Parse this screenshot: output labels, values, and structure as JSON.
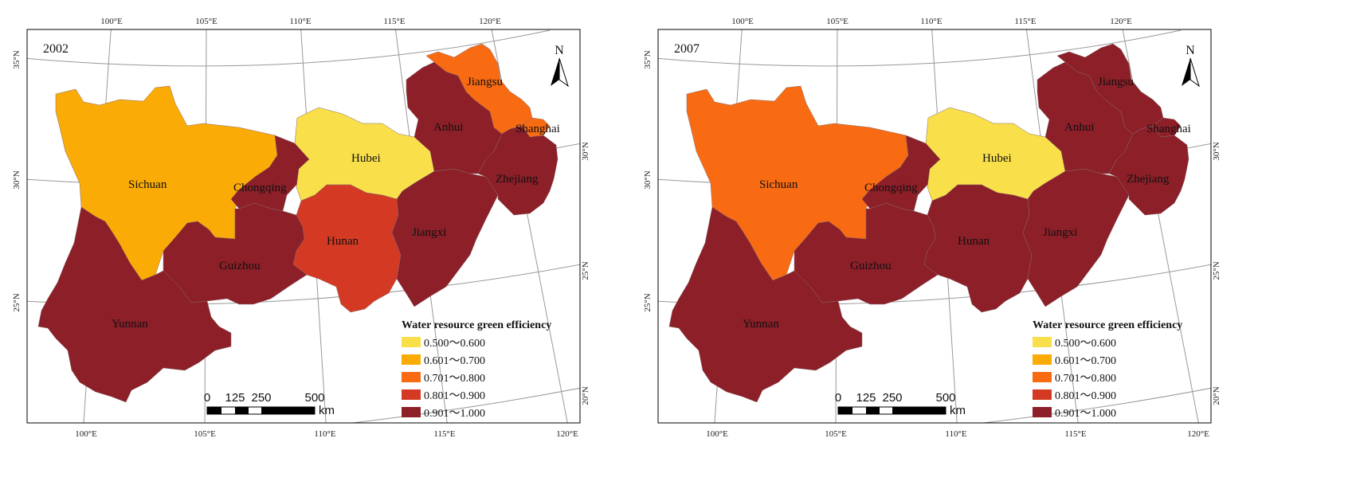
{
  "legend": {
    "title": "Water resource green efficiency",
    "classes": [
      {
        "label": "0.500～0.600",
        "color": "#f9e04b"
      },
      {
        "label": "0.601～0.700",
        "color": "#fbab05"
      },
      {
        "label": "0.701～0.800",
        "color": "#f86b12"
      },
      {
        "label": "0.801～0.900",
        "color": "#d43a23"
      },
      {
        "label": "0.901～1.000",
        "color": "#8c1f28"
      }
    ]
  },
  "north_label": "N",
  "scale_bar": {
    "ticks": [
      "0",
      "125",
      "250",
      "500"
    ],
    "unit": "km"
  },
  "graticule": {
    "lon_top": [
      "100°E",
      "105°E",
      "110°E",
      "115°E",
      "120°E"
    ],
    "lon_bottom": [
      "100°E",
      "105°E",
      "110°E",
      "115°E",
      "120°E"
    ],
    "lat_left": [
      "35°N",
      "30°N",
      "25°N"
    ],
    "lat_right": [
      "30°N",
      "25°N",
      "20°N"
    ]
  },
  "maps": [
    {
      "year": "2002",
      "provinces": {
        "Sichuan": 1,
        "Chongqing": 4,
        "Hubei": 0,
        "Hunan": 3,
        "Guizhou": 4,
        "Yunnan": 4,
        "Jiangxi": 4,
        "Anhui": 4,
        "Jiangsu": 2,
        "Shanghai": 2,
        "Zhejiang": 4
      }
    },
    {
      "year": "2007",
      "provinces": {
        "Sichuan": 2,
        "Chongqing": 4,
        "Hubei": 0,
        "Hunan": 4,
        "Guizhou": 4,
        "Yunnan": 4,
        "Jiangxi": 4,
        "Anhui": 4,
        "Jiangsu": 4,
        "Shanghai": 4,
        "Zhejiang": 4
      }
    }
  ]
}
